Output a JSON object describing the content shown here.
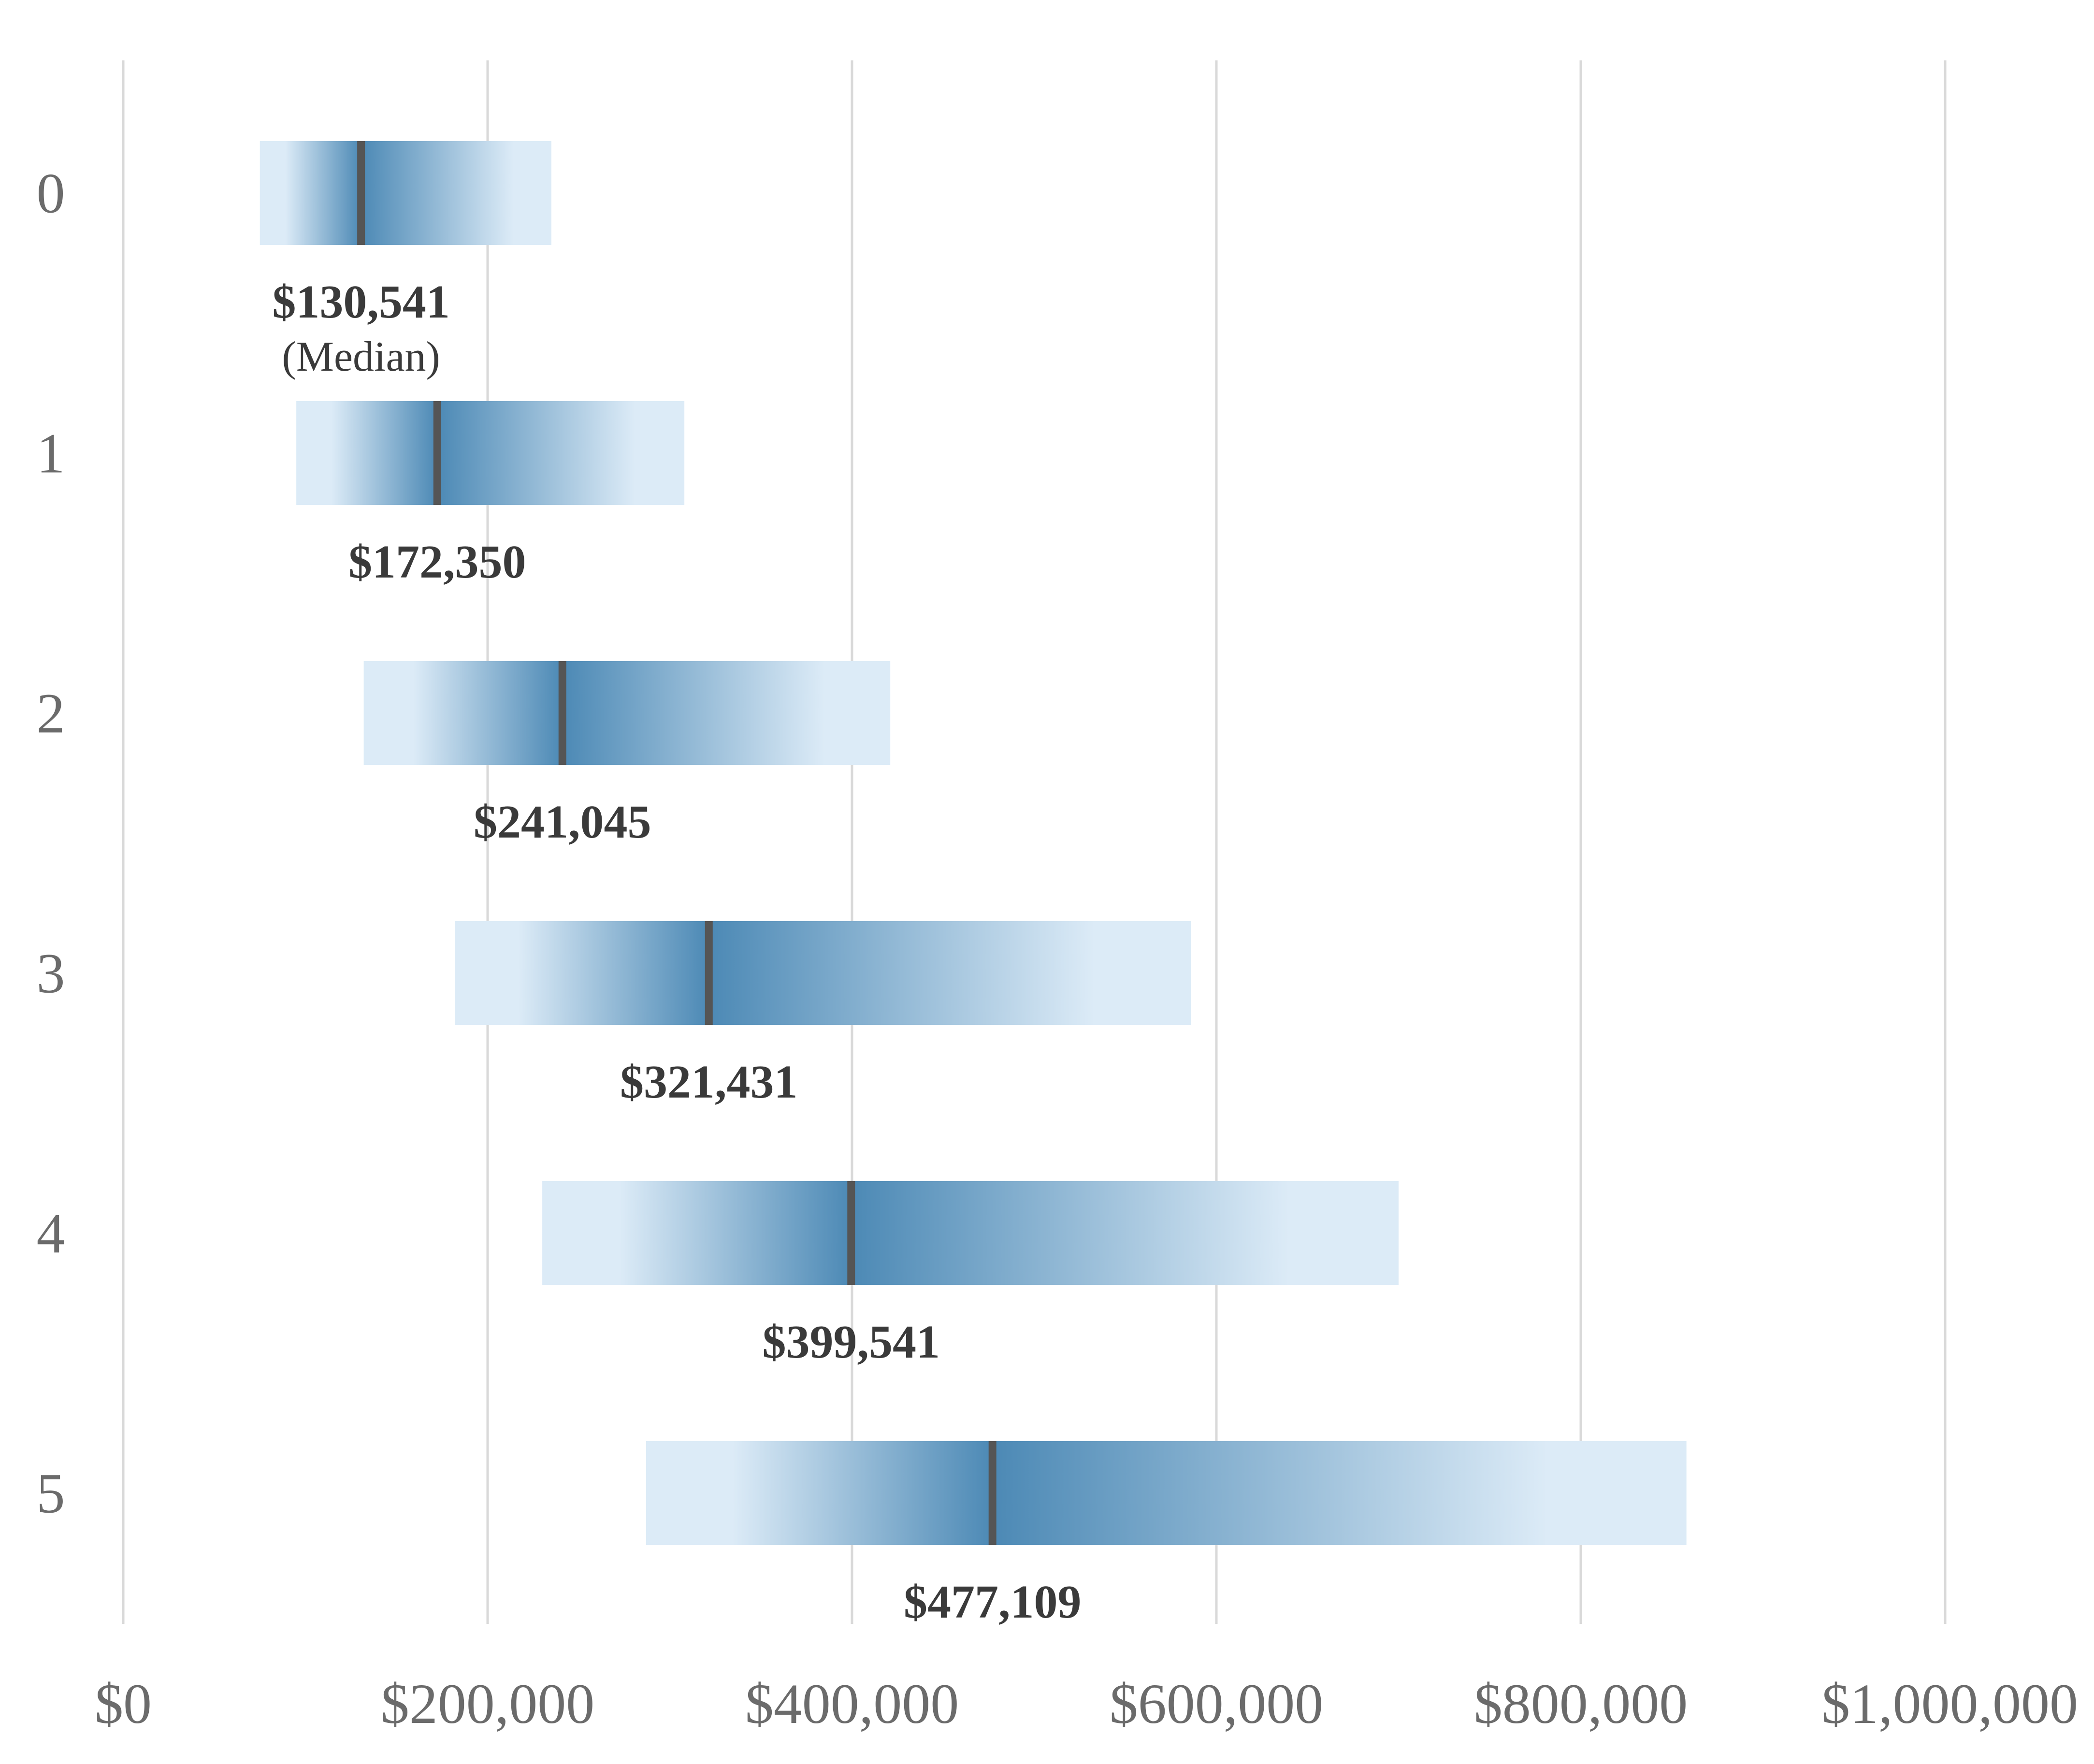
{
  "chart_data": {
    "type": "bar",
    "orientation": "horizontal",
    "title": "",
    "xlabel": "",
    "ylabel": "",
    "xlim": [
      0,
      1000000
    ],
    "x_ticks": [
      0,
      200000,
      400000,
      600000,
      800000,
      1000000
    ],
    "x_tick_labels": [
      "$0",
      "$200,000",
      "$400,000",
      "$600,000",
      "$800,000",
      "$1,000,000"
    ],
    "grid": "vertical",
    "categories": [
      "0",
      "1",
      "2",
      "3",
      "4",
      "5"
    ],
    "median_note": "(Median)",
    "series": [
      {
        "low": 75000,
        "high": 235000,
        "median": 130541,
        "label": "$130,541"
      },
      {
        "low": 95000,
        "high": 308000,
        "median": 172350,
        "label": "$172,350"
      },
      {
        "low": 132000,
        "high": 421000,
        "median": 241045,
        "label": "$241,045"
      },
      {
        "low": 182000,
        "high": 586000,
        "median": 321431,
        "label": "$321,431"
      },
      {
        "low": 230000,
        "high": 700000,
        "median": 399541,
        "label": "$399,541"
      },
      {
        "low": 287000,
        "high": 858000,
        "median": 477109,
        "label": "$477,109"
      }
    ],
    "colors": {
      "range_edge": "#dcebf7",
      "range_center": "#4c89b5",
      "median_line": "#555555",
      "grid": "#d9d9d9",
      "text": "#3a3a3a",
      "axis_text": "#6b6b6b"
    }
  }
}
